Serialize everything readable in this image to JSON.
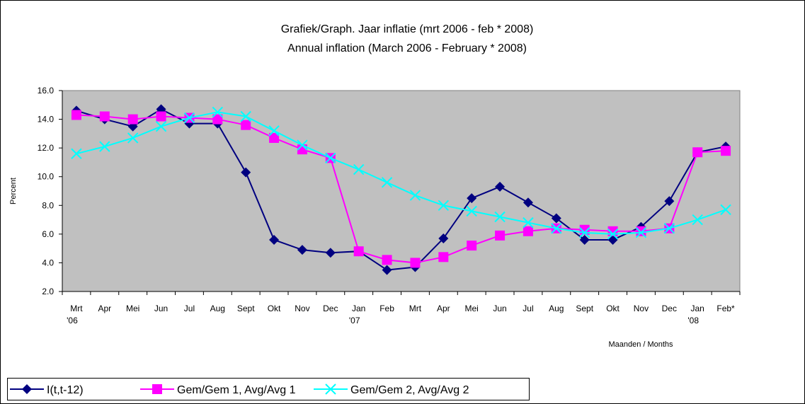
{
  "chart_data": {
    "type": "line",
    "title": "Grafiek/Graph.  Jaar inflatie (mrt 2006 - feb * 2008)",
    "subtitle": "Annual inflation (March 2006 - February * 2008)",
    "y_label": "Percent",
    "x_label": "Maanden / Months",
    "categories": [
      [
        "Mrt",
        "'06"
      ],
      [
        "Apr"
      ],
      [
        "Mei"
      ],
      [
        "Jun"
      ],
      [
        "Jul"
      ],
      [
        "Aug"
      ],
      [
        "Sept"
      ],
      [
        "Okt"
      ],
      [
        "Nov"
      ],
      [
        "Dec"
      ],
      [
        "Jan",
        "'07"
      ],
      [
        "Feb"
      ],
      [
        "Mrt"
      ],
      [
        "Apr"
      ],
      [
        "Mei"
      ],
      [
        "Jun"
      ],
      [
        "Jul"
      ],
      [
        "Aug"
      ],
      [
        "Sept"
      ],
      [
        "Okt"
      ],
      [
        "Nov"
      ],
      [
        "Dec"
      ],
      [
        "Jan",
        "'08"
      ],
      [
        "Feb*"
      ]
    ],
    "series": [
      {
        "name": "I(t,t-12)",
        "color": "#000080",
        "marker": "diamond",
        "values": [
          14.6,
          14.0,
          13.5,
          14.7,
          13.7,
          13.7,
          10.3,
          5.6,
          4.9,
          4.7,
          4.8,
          3.5,
          3.7,
          5.7,
          8.5,
          9.3,
          8.2,
          7.1,
          5.6,
          5.6,
          6.5,
          8.3,
          11.7,
          12.1
        ]
      },
      {
        "name": "Gem/Gem 1, Avg/Avg 1",
        "color": "#ff00ff",
        "marker": "square",
        "values": [
          14.3,
          14.2,
          14.0,
          14.2,
          14.1,
          14.0,
          13.6,
          12.7,
          11.9,
          11.3,
          4.8,
          4.2,
          4.0,
          4.4,
          5.2,
          5.9,
          6.2,
          6.4,
          6.3,
          6.2,
          6.2,
          6.4,
          11.7,
          11.8
        ]
      },
      {
        "name": "Gem/Gem 2, Avg/Avg 2",
        "color": "#00ffff",
        "marker": "x",
        "values": [
          11.6,
          12.1,
          12.7,
          13.5,
          14.1,
          14.5,
          14.2,
          13.2,
          12.2,
          11.3,
          10.5,
          9.6,
          8.7,
          8.0,
          7.6,
          7.2,
          6.8,
          6.4,
          6.1,
          6.0,
          6.1,
          6.4,
          7.0,
          7.7
        ]
      }
    ],
    "ylim": [
      2,
      16
    ],
    "yticks": [
      {
        "value": 2,
        "label": "2.0"
      },
      {
        "value": 4,
        "label": "4.0"
      },
      {
        "value": 6,
        "label": "6.0"
      },
      {
        "value": 8,
        "label": "8.0"
      },
      {
        "value": 10,
        "label": "10.0"
      },
      {
        "value": 12,
        "label": "12.0"
      },
      {
        "value": 14,
        "label": "14.0"
      },
      {
        "value": 16,
        "label": "16.0"
      }
    ],
    "legend": "bottom-left",
    "plot_background": "#c0c0c0"
  }
}
